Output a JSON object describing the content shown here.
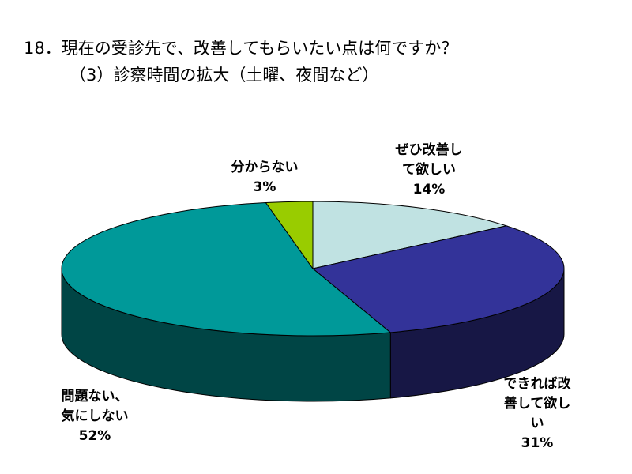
{
  "title_line1": "18．現在の受診先で、改善してもらいたい点は何ですか？",
  "title_line2": "（3）診察時間の拡大（土曜、夜間など）",
  "chart_data": {
    "type": "pie",
    "style": "3d",
    "slices": [
      {
        "label_lines": [
          "ぜひ改善し",
          "て欲しい"
        ],
        "value": 14,
        "value_text": "14%",
        "color": "#c0e2e2"
      },
      {
        "label_lines": [
          "できれば改",
          "善して欲し",
          "い"
        ],
        "value": 31,
        "value_text": "31%",
        "color": "#333399"
      },
      {
        "label_lines": [
          "問題ない、",
          "気にしない"
        ],
        "value": 52,
        "value_text": "52%",
        "color": "#009999"
      },
      {
        "label_lines": [
          "分からない"
        ],
        "value": 3,
        "value_text": "3%",
        "color": "#99cc00"
      }
    ]
  }
}
